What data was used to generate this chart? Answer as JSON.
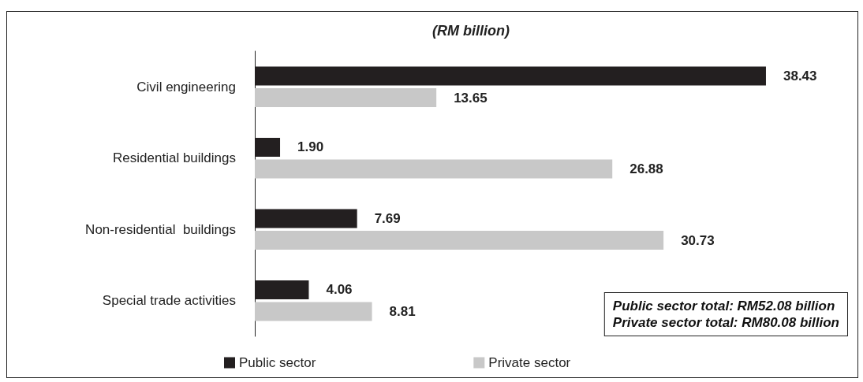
{
  "chart_data": {
    "type": "bar",
    "orientation": "horizontal",
    "title": "(RM billion)",
    "categories": [
      "Civil engineering",
      "Residential buildings",
      "Non-residential  buildings",
      "Special trade activities"
    ],
    "series": [
      {
        "name": "Public sector",
        "color": "#231f20",
        "values": [
          38.43,
          1.9,
          7.69,
          4.06
        ],
        "value_labels": [
          "38.43",
          "1.90",
          "7.69",
          "4.06"
        ]
      },
      {
        "name": "Private sector",
        "color": "#c8c8c8",
        "values": [
          13.65,
          26.88,
          30.73,
          8.81
        ],
        "value_labels": [
          "13.65",
          "26.88",
          "30.73",
          "8.81"
        ]
      }
    ],
    "annotations": [
      "Public sector total: RM52.08 billion",
      "Private sector total: RM80.08 billion"
    ],
    "legend": "bottom",
    "grid": false,
    "tick_labels": "y"
  }
}
